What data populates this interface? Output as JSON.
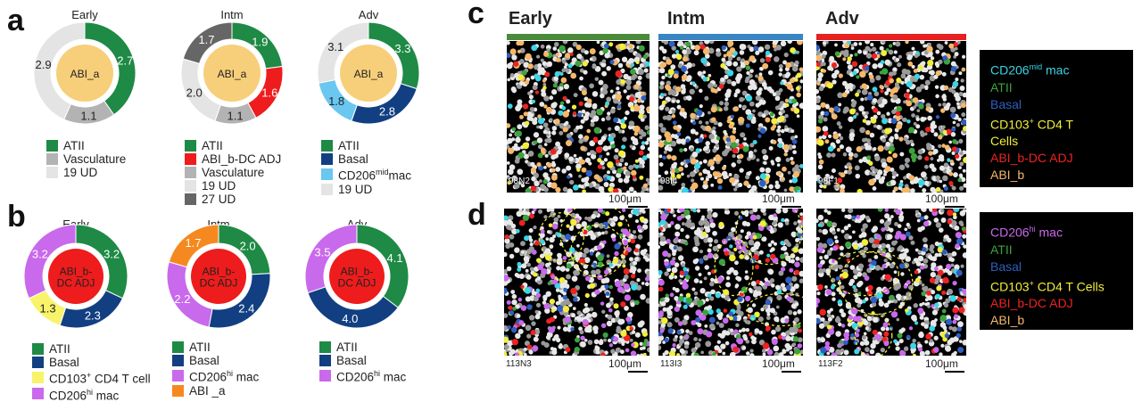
{
  "panels": {
    "a": "a",
    "b": "b",
    "c": "c",
    "d": "d"
  },
  "chart_data": [
    {
      "type": "pie",
      "panel": "a",
      "title": "Early",
      "center": "ABI_a",
      "center_color": "#f7cf7a",
      "slices": [
        {
          "label": "ATII",
          "value": 2.7,
          "color": "#1e8a45"
        },
        {
          "label": "Vasculature",
          "value": 1.1,
          "color": "#b3b3b3"
        },
        {
          "label": "19 UD",
          "value": 2.9,
          "color": "#e4e4e4"
        }
      ],
      "legend": [
        {
          "label": "ATII",
          "color": "#1e8a45"
        },
        {
          "label": "Vasculature",
          "color": "#b3b3b3"
        },
        {
          "label": "19 UD",
          "color": "#e4e4e4"
        }
      ]
    },
    {
      "type": "pie",
      "panel": "a",
      "title": "Intm",
      "center": "ABI_a",
      "center_color": "#f7cf7a",
      "slices": [
        {
          "label": "ATII",
          "value": 1.9,
          "color": "#1e8a45"
        },
        {
          "label": "ABI_b-DC ADJ",
          "value": 1.6,
          "color": "#ee1c1c"
        },
        {
          "label": "Vasculature",
          "value": 1.1,
          "color": "#b3b3b3"
        },
        {
          "label": "19 UD",
          "value": 2.0,
          "color": "#e4e4e4"
        },
        {
          "label": "27 UD",
          "value": 1.7,
          "color": "#666666"
        }
      ],
      "legend": [
        {
          "label": "ATII",
          "color": "#1e8a45"
        },
        {
          "label": "ABI_b-DC ADJ",
          "color": "#ee1c1c"
        },
        {
          "label": "Vasculature",
          "color": "#b3b3b3"
        },
        {
          "label": "19 UD",
          "color": "#e4e4e4"
        },
        {
          "label": "27 UD",
          "color": "#666666"
        }
      ]
    },
    {
      "type": "pie",
      "panel": "a",
      "title": "Adv",
      "center": "ABI_a",
      "center_color": "#f7cf7a",
      "slices": [
        {
          "label": "ATII",
          "value": 3.3,
          "color": "#1e8a45"
        },
        {
          "label": "Basal",
          "value": 2.8,
          "color": "#123f82"
        },
        {
          "label": "CD206mid mac",
          "value": 1.8,
          "color": "#6ac7f0"
        },
        {
          "label": "19 UD",
          "value": 3.1,
          "color": "#e4e4e4"
        }
      ],
      "legend": [
        {
          "label": "ATII",
          "color": "#1e8a45"
        },
        {
          "label": "Basal",
          "color": "#123f82"
        },
        {
          "label": "CD206",
          "sup": "mid",
          "after": "mac",
          "color": "#6ac7f0"
        },
        {
          "label": "19 UD",
          "color": "#e4e4e4"
        }
      ]
    },
    {
      "type": "pie",
      "panel": "b",
      "title": "Early",
      "center": "ABI_b-DC ADJ",
      "center_color": "#ee1c1c",
      "slices": [
        {
          "label": "ATII",
          "value": 3.2,
          "color": "#1e8a45"
        },
        {
          "label": "Basal",
          "value": 2.3,
          "color": "#123f82"
        },
        {
          "label": "CD103+ CD4 T cell",
          "value": 1.3,
          "color": "#f8f36a"
        },
        {
          "label": "CD206hi mac",
          "value": 3.2,
          "color": "#c969ec"
        }
      ],
      "legend": [
        {
          "label": "ATII",
          "color": "#1e8a45"
        },
        {
          "label": "Basal",
          "color": "#123f82"
        },
        {
          "label": "CD103",
          "sup": "+",
          "after": " CD4 T cell",
          "color": "#f8f36a"
        },
        {
          "label": "CD206",
          "sup": "hi",
          "after": " mac",
          "color": "#c969ec"
        }
      ]
    },
    {
      "type": "pie",
      "panel": "b",
      "title": "Intm",
      "center": "ABI_b-DC ADJ",
      "center_color": "#ee1c1c",
      "slices": [
        {
          "label": "ATII",
          "value": 2.0,
          "color": "#1e8a45"
        },
        {
          "label": "Basal",
          "value": 2.4,
          "color": "#123f82"
        },
        {
          "label": "CD206hi mac",
          "value": 2.2,
          "color": "#c969ec"
        },
        {
          "label": "ABI_a",
          "value": 1.7,
          "color": "#f5891f"
        }
      ],
      "legend": [
        {
          "label": "ATII",
          "color": "#1e8a45"
        },
        {
          "label": "Basal",
          "color": "#123f82"
        },
        {
          "label": "CD206",
          "sup": "hi",
          "after": " mac",
          "color": "#c969ec"
        },
        {
          "label": "ABI _a",
          "color": "#f5891f"
        }
      ]
    },
    {
      "type": "pie",
      "panel": "b",
      "title": "Adv",
      "center": "ABI_b-DC ADJ",
      "center_color": "#ee1c1c",
      "slices": [
        {
          "label": "ATII",
          "value": 4.1,
          "color": "#1e8a45"
        },
        {
          "label": "Basal",
          "value": 4.0,
          "color": "#123f82"
        },
        {
          "label": "CD206hi mac",
          "value": 3.5,
          "color": "#c969ec"
        }
      ],
      "legend": [
        {
          "label": "ATII",
          "color": "#1e8a45"
        },
        {
          "label": "Basal",
          "color": "#123f82"
        },
        {
          "label": "CD206",
          "sup": "hi",
          "after": " mac",
          "color": "#c969ec"
        }
      ]
    }
  ],
  "micrographs": {
    "columns": [
      {
        "title": "Early",
        "bar_color": "#4a8a3a"
      },
      {
        "title": "Intm",
        "bar_color": "#3a85c4"
      },
      {
        "title": "Adv",
        "bar_color": "#e82020"
      }
    ],
    "scale_label": "100μm",
    "row_c": [
      "98N2",
      "98I4",
      "98F1"
    ],
    "row_d": [
      "113N3",
      "113I3",
      "113F2"
    ]
  },
  "keys": {
    "c": [
      {
        "text": "CD206",
        "sup": "mid",
        "after": " mac",
        "color": "#3ad5e6"
      },
      {
        "text": "ATII",
        "color": "#3da33d"
      },
      {
        "text": "Basal",
        "color": "#2e5fc0"
      },
      {
        "text": "CD103",
        "sup": "+",
        "after": " CD4 T",
        "color": "#f2ee3a"
      },
      {
        "text": "Cells",
        "color": "#f2ee3a"
      },
      {
        "text": "ABI_b-DC ADJ",
        "color": "#ee2222"
      },
      {
        "text": "ABI_b",
        "color": "#f5b86a"
      }
    ],
    "d": [
      {
        "text": "CD206",
        "sup": "hi",
        "after": " mac",
        "color": "#c969ec"
      },
      {
        "text": "ATII",
        "color": "#3da33d"
      },
      {
        "text": "Basal",
        "color": "#2e5fc0"
      },
      {
        "text": "CD103",
        "sup": "+",
        "after": " CD4 T Cells",
        "color": "#f2ee3a"
      },
      {
        "text": "ABI_b-DC ADJ",
        "color": "#ee2222"
      },
      {
        "text": "ABI_b",
        "color": "#f5b86a"
      }
    ]
  }
}
